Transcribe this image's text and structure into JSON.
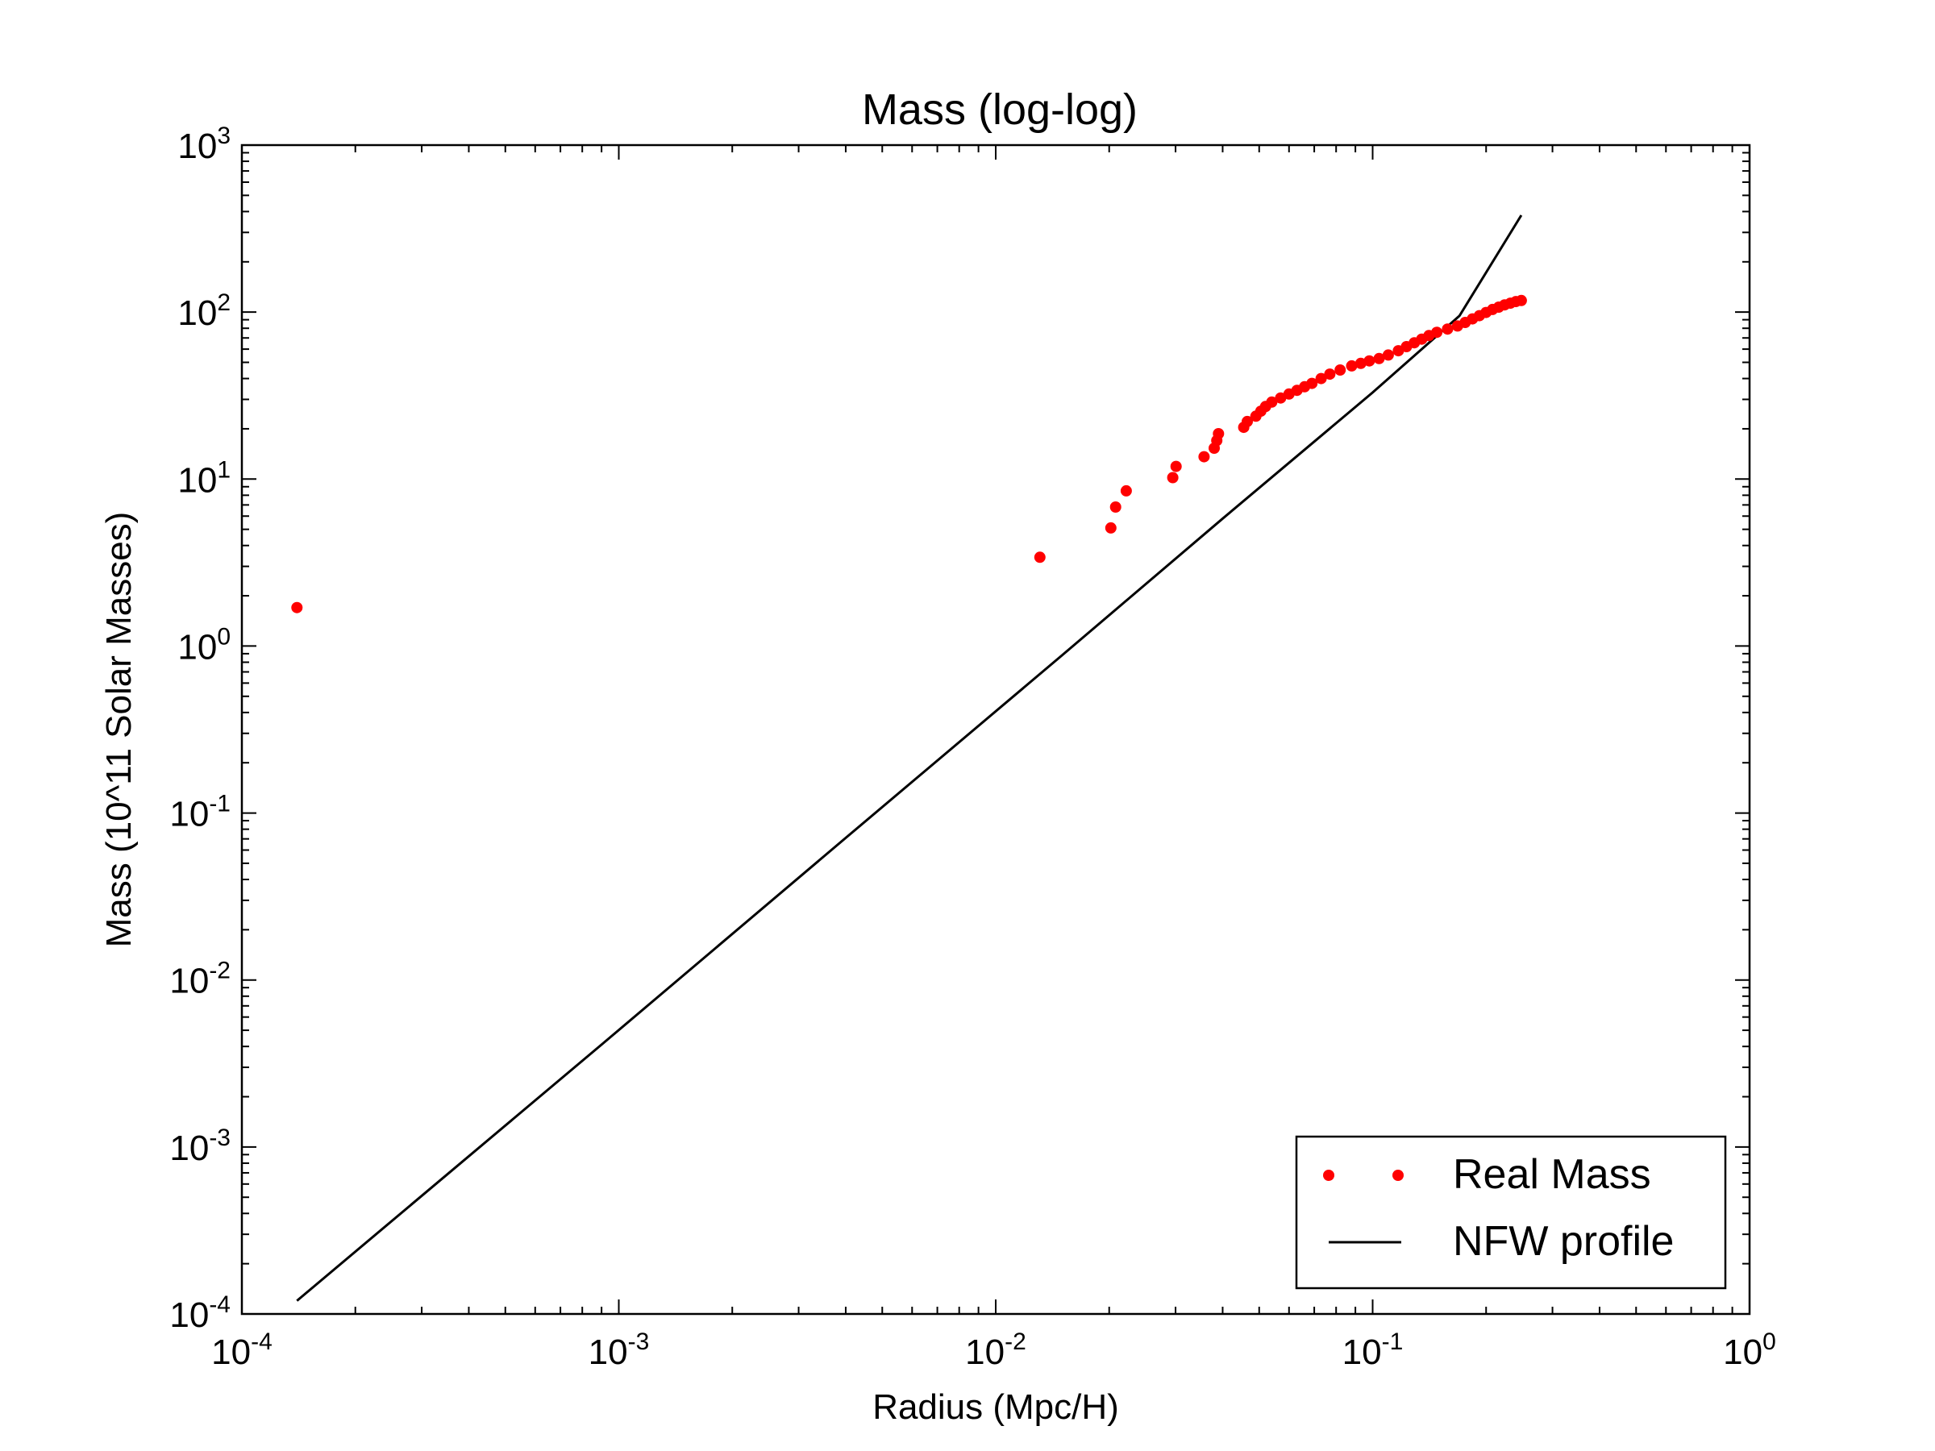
{
  "chart_data": {
    "type": "scatter",
    "title": "Mass (log-log)",
    "xlabel": "Radius (Mpc/H)",
    "ylabel": "Mass (10^11 Solar Masses)",
    "xscale": "log",
    "yscale": "log",
    "xlim": [
      0.0001,
      1
    ],
    "ylim": [
      0.0001,
      1000
    ],
    "grid": false,
    "legend_position": "lower-right",
    "x_ticks": [
      {
        "value": 0.0001,
        "base": "10",
        "exp": "-4"
      },
      {
        "value": 0.001,
        "base": "10",
        "exp": "-3"
      },
      {
        "value": 0.01,
        "base": "10",
        "exp": "-2"
      },
      {
        "value": 0.1,
        "base": "10",
        "exp": "-1"
      },
      {
        "value": 1,
        "base": "10",
        "exp": "0"
      }
    ],
    "y_ticks": [
      {
        "value": 0.0001,
        "base": "10",
        "exp": "-4"
      },
      {
        "value": 0.001,
        "base": "10",
        "exp": "-3"
      },
      {
        "value": 0.01,
        "base": "10",
        "exp": "-2"
      },
      {
        "value": 0.1,
        "base": "10",
        "exp": "-1"
      },
      {
        "value": 1,
        "base": "10",
        "exp": "0"
      },
      {
        "value": 10,
        "base": "10",
        "exp": "1"
      },
      {
        "value": 100,
        "base": "10",
        "exp": "2"
      },
      {
        "value": 1000,
        "base": "10",
        "exp": "3"
      }
    ],
    "series": [
      {
        "name": "Real Mass",
        "style": "points",
        "color": "#ff0000",
        "points": [
          [
            0.00014,
            1.7
          ],
          [
            0.0131,
            3.4
          ],
          [
            0.0202,
            5.1
          ],
          [
            0.0208,
            6.8
          ],
          [
            0.0222,
            8.5
          ],
          [
            0.0295,
            10.2
          ],
          [
            0.0301,
            11.9
          ],
          [
            0.0357,
            13.6
          ],
          [
            0.038,
            15.3
          ],
          [
            0.0386,
            17.0
          ],
          [
            0.039,
            18.7
          ],
          [
            0.0455,
            20.4
          ],
          [
            0.0465,
            22.1
          ],
          [
            0.049,
            23.8
          ],
          [
            0.0505,
            25.5
          ],
          [
            0.052,
            27.2
          ],
          [
            0.054,
            28.9
          ],
          [
            0.057,
            30.6
          ],
          [
            0.06,
            32.3
          ],
          [
            0.063,
            34.0
          ],
          [
            0.066,
            35.7
          ],
          [
            0.069,
            37.4
          ],
          [
            0.073,
            40.0
          ],
          [
            0.077,
            42.5
          ],
          [
            0.082,
            45.0
          ],
          [
            0.088,
            47.6
          ],
          [
            0.093,
            49.3
          ],
          [
            0.098,
            51.0
          ],
          [
            0.104,
            52.7
          ],
          [
            0.11,
            55.3
          ],
          [
            0.117,
            58.7
          ],
          [
            0.123,
            62.1
          ],
          [
            0.129,
            65.5
          ],
          [
            0.135,
            68.9
          ],
          [
            0.141,
            72.3
          ],
          [
            0.148,
            75.7
          ],
          [
            0.158,
            79.1
          ],
          [
            0.168,
            82.5
          ],
          [
            0.176,
            86.7
          ],
          [
            0.184,
            91.0
          ],
          [
            0.192,
            95.2
          ],
          [
            0.2,
            99.5
          ],
          [
            0.208,
            103.7
          ],
          [
            0.216,
            107.1
          ],
          [
            0.224,
            110.5
          ],
          [
            0.232,
            113.1
          ],
          [
            0.24,
            115.6
          ],
          [
            0.248,
            117.3
          ]
        ]
      },
      {
        "name": "NFW profile",
        "style": "line",
        "color": "#000000",
        "points": [
          [
            0.00014,
            0.00012
          ],
          [
            0.0009,
            0.0041
          ],
          [
            0.004,
            0.071
          ],
          [
            0.015,
            0.88
          ],
          [
            0.04,
            5.8
          ],
          [
            0.1,
            33.0
          ],
          [
            0.17,
            95.0
          ],
          [
            0.248,
            380.0
          ]
        ]
      }
    ]
  }
}
